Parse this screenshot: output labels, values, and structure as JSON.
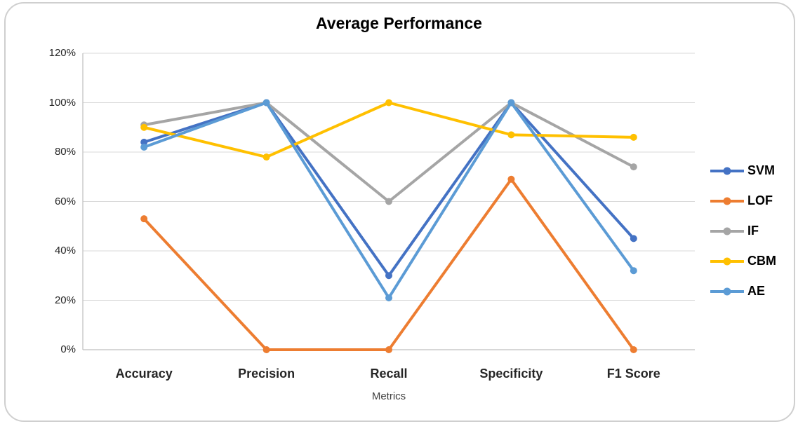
{
  "chart_data": {
    "type": "line",
    "title": "Average Performance",
    "xlabel": "Metrics",
    "ylabel": "",
    "categories": [
      "Accuracy",
      "Precision",
      "Recall",
      "Specificity",
      "F1 Score"
    ],
    "series": [
      {
        "name": "SVM",
        "color": "#4472C4",
        "values": [
          84,
          100,
          30,
          100,
          45
        ]
      },
      {
        "name": "LOF",
        "color": "#ED7D31",
        "values": [
          53,
          0,
          0,
          69,
          0
        ]
      },
      {
        "name": "IF",
        "color": "#A5A5A5",
        "values": [
          91,
          100,
          60,
          100,
          74
        ]
      },
      {
        "name": "CBM",
        "color": "#FFC000",
        "values": [
          90,
          78,
          100,
          87,
          86
        ]
      },
      {
        "name": "AE",
        "color": "#5B9BD5",
        "values": [
          82,
          100,
          21,
          100,
          32
        ]
      }
    ],
    "ylim": [
      0,
      120
    ],
    "y_ticks": [
      {
        "value": 0,
        "label": "0%"
      },
      {
        "value": 20,
        "label": "20%"
      },
      {
        "value": 40,
        "label": "40%"
      },
      {
        "value": 60,
        "label": "60%"
      },
      {
        "value": 80,
        "label": "80%"
      },
      {
        "value": 100,
        "label": "100%"
      },
      {
        "value": 120,
        "label": "120%"
      }
    ],
    "grid": true,
    "legend_position": "right",
    "marker": "circle"
  },
  "style": {
    "gridline_color": "#D9D9D9",
    "axis_color": "#BFBFBF",
    "frame_border_color": "#CFCFCF",
    "text_color": "#262626",
    "background": "#FFFFFF"
  }
}
